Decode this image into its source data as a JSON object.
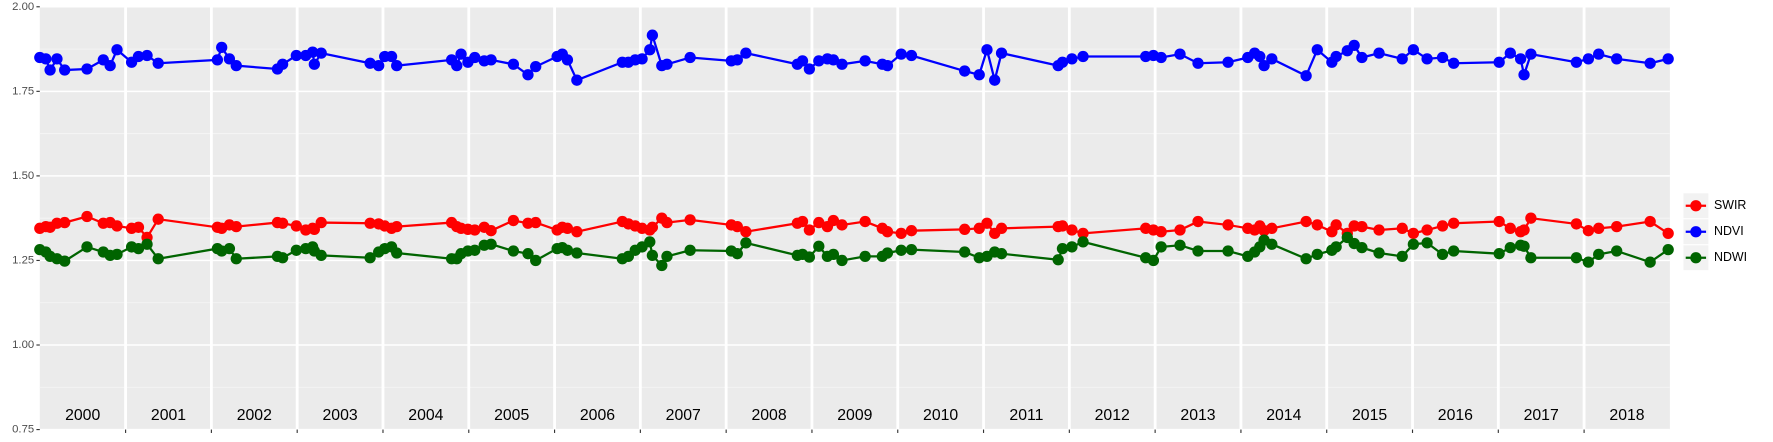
{
  "chart_data": {
    "type": "line",
    "x": [
      2000.0,
      2000.07,
      2000.12,
      2000.2,
      2000.29,
      2000.55,
      2000.74,
      2000.82,
      2000.9,
      2001.07,
      2001.15,
      2001.25,
      2001.38,
      2002.07,
      2002.12,
      2002.21,
      2002.29,
      2002.77,
      2002.83,
      2002.99,
      2003.1,
      2003.18,
      2003.2,
      2003.28,
      2003.85,
      2003.95,
      2004.02,
      2004.1,
      2004.16,
      2004.8,
      2004.86,
      2004.91,
      2004.99,
      2005.07,
      2005.18,
      2005.26,
      2005.52,
      2005.69,
      2005.78,
      2006.03,
      2006.09,
      2006.15,
      2006.26,
      2006.79,
      2006.86,
      2006.94,
      2007.02,
      2007.11,
      2007.14,
      2007.25,
      2007.31,
      2007.58,
      2008.06,
      2008.13,
      2008.23,
      2008.83,
      2008.89,
      2008.97,
      2009.08,
      2009.18,
      2009.25,
      2009.35,
      2009.62,
      2009.82,
      2009.88,
      2010.04,
      2010.16,
      2010.78,
      2010.95,
      2011.04,
      2011.13,
      2011.21,
      2011.87,
      2011.92,
      2012.03,
      2012.16,
      2012.89,
      2012.98,
      2013.07,
      2013.29,
      2013.5,
      2013.85,
      2014.08,
      2014.16,
      2014.22,
      2014.27,
      2014.36,
      2014.76,
      2014.89,
      2015.06,
      2015.11,
      2015.24,
      2015.32,
      2015.41,
      2015.61,
      2015.88,
      2016.01,
      2016.17,
      2016.35,
      2016.48,
      2017.01,
      2017.14,
      2017.26,
      2017.3,
      2017.38,
      2017.91,
      2018.05,
      2018.17,
      2018.38,
      2018.77,
      2018.98
    ],
    "series": [
      {
        "name": "SWIR",
        "color": "#ff0000",
        "values": [
          1.345,
          1.35,
          1.348,
          1.36,
          1.362,
          1.38,
          1.36,
          1.362,
          1.352,
          1.345,
          1.348,
          1.318,
          1.372,
          1.348,
          1.345,
          1.355,
          1.35,
          1.362,
          1.36,
          1.352,
          1.34,
          1.345,
          1.342,
          1.362,
          1.36,
          1.358,
          1.352,
          1.345,
          1.35,
          1.362,
          1.35,
          1.345,
          1.342,
          1.34,
          1.348,
          1.338,
          1.368,
          1.36,
          1.362,
          1.34,
          1.348,
          1.345,
          1.335,
          1.365,
          1.358,
          1.352,
          1.345,
          1.34,
          1.348,
          1.375,
          1.362,
          1.37,
          1.355,
          1.35,
          1.335,
          1.36,
          1.365,
          1.34,
          1.362,
          1.35,
          1.368,
          1.355,
          1.365,
          1.345,
          1.335,
          1.33,
          1.338,
          1.342,
          1.345,
          1.36,
          1.33,
          1.345,
          1.35,
          1.352,
          1.34,
          1.33,
          1.345,
          1.34,
          1.335,
          1.34,
          1.365,
          1.355,
          1.345,
          1.34,
          1.352,
          1.338,
          1.345,
          1.365,
          1.355,
          1.335,
          1.355,
          1.33,
          1.352,
          1.35,
          1.34,
          1.345,
          1.33,
          1.34,
          1.352,
          1.36,
          1.365,
          1.345,
          1.335,
          1.34,
          1.375,
          1.358,
          1.338,
          1.345,
          1.35,
          1.365,
          1.33
        ]
      },
      {
        "name": "NDVI",
        "color": "#0000ff",
        "values": [
          1.85,
          1.846,
          1.813,
          1.846,
          1.813,
          1.816,
          1.843,
          1.826,
          1.873,
          1.836,
          1.853,
          1.856,
          1.833,
          1.843,
          1.88,
          1.846,
          1.826,
          1.816,
          1.83,
          1.856,
          1.856,
          1.866,
          1.83,
          1.863,
          1.833,
          1.826,
          1.853,
          1.853,
          1.826,
          1.843,
          1.826,
          1.86,
          1.836,
          1.85,
          1.84,
          1.843,
          1.83,
          1.799,
          1.823,
          1.853,
          1.86,
          1.843,
          1.783,
          1.836,
          1.836,
          1.843,
          1.846,
          1.873,
          1.916,
          1.826,
          1.83,
          1.85,
          1.84,
          1.843,
          1.863,
          1.83,
          1.84,
          1.816,
          1.84,
          1.846,
          1.843,
          1.83,
          1.84,
          1.83,
          1.826,
          1.86,
          1.856,
          1.81,
          1.799,
          1.873,
          1.783,
          1.863,
          1.826,
          1.836,
          1.846,
          1.853,
          1.853,
          1.856,
          1.85,
          1.86,
          1.833,
          1.836,
          1.85,
          1.863,
          1.853,
          1.826,
          1.846,
          1.796,
          1.873,
          1.836,
          1.853,
          1.87,
          1.886,
          1.85,
          1.863,
          1.846,
          1.873,
          1.846,
          1.85,
          1.833,
          1.836,
          1.863,
          1.846,
          1.799,
          1.86,
          1.836,
          1.846,
          1.86,
          1.846,
          1.833,
          1.846
        ]
      },
      {
        "name": "NDWI",
        "color": "#006400",
        "values": [
          1.282,
          1.275,
          1.262,
          1.255,
          1.248,
          1.29,
          1.275,
          1.265,
          1.268,
          1.29,
          1.285,
          1.298,
          1.255,
          1.285,
          1.278,
          1.285,
          1.255,
          1.262,
          1.258,
          1.28,
          1.285,
          1.29,
          1.278,
          1.265,
          1.258,
          1.275,
          1.285,
          1.29,
          1.272,
          1.255,
          1.255,
          1.27,
          1.278,
          1.28,
          1.295,
          1.298,
          1.278,
          1.27,
          1.25,
          1.285,
          1.288,
          1.28,
          1.272,
          1.255,
          1.262,
          1.28,
          1.29,
          1.305,
          1.265,
          1.235,
          1.262,
          1.28,
          1.278,
          1.27,
          1.302,
          1.265,
          1.268,
          1.26,
          1.292,
          1.262,
          1.268,
          1.25,
          1.262,
          1.262,
          1.272,
          1.28,
          1.282,
          1.275,
          1.258,
          1.262,
          1.275,
          1.27,
          1.252,
          1.285,
          1.29,
          1.305,
          1.258,
          1.25,
          1.29,
          1.295,
          1.278,
          1.278,
          1.262,
          1.275,
          1.29,
          1.31,
          1.298,
          1.255,
          1.268,
          1.28,
          1.29,
          1.318,
          1.3,
          1.288,
          1.272,
          1.262,
          1.298,
          1.302,
          1.268,
          1.278,
          1.27,
          1.288,
          1.295,
          1.292,
          1.258,
          1.258,
          1.245,
          1.268,
          1.278,
          1.245,
          1.282
        ]
      }
    ],
    "xlim": [
      2000,
      2019
    ],
    "xticks": [
      2001,
      2002,
      2003,
      2004,
      2005,
      2006,
      2007,
      2008,
      2009,
      2010,
      2011,
      2012,
      2013,
      2014,
      2015,
      2016,
      2017,
      2018
    ],
    "ylim": [
      0.75,
      2.0
    ],
    "yticks": [
      {
        "value": 0.75,
        "label": "0.75"
      },
      {
        "value": 1,
        "label": "1.00"
      },
      {
        "value": 1.25,
        "label": "1.25"
      },
      {
        "value": 1.5,
        "label": "1.50"
      },
      {
        "value": 1.75,
        "label": "1.75"
      },
      {
        "value": 2,
        "label": "2.00"
      }
    ],
    "grid": true,
    "legend": "right",
    "annotations": [
      {
        "text": "2000",
        "x": 2000.5,
        "y": 0.79
      },
      {
        "text": "2001",
        "x": 2001.5,
        "y": 0.79
      },
      {
        "text": "2002",
        "x": 2002.5,
        "y": 0.79
      },
      {
        "text": "2003",
        "x": 2003.5,
        "y": 0.79
      },
      {
        "text": "2004",
        "x": 2004.5,
        "y": 0.79
      },
      {
        "text": "2005",
        "x": 2005.5,
        "y": 0.79
      },
      {
        "text": "2006",
        "x": 2006.5,
        "y": 0.79
      },
      {
        "text": "2007",
        "x": 2007.5,
        "y": 0.79
      },
      {
        "text": "2008",
        "x": 2008.5,
        "y": 0.79
      },
      {
        "text": "2009",
        "x": 2009.5,
        "y": 0.79
      },
      {
        "text": "2010",
        "x": 2010.5,
        "y": 0.79
      },
      {
        "text": "2011",
        "x": 2011.5,
        "y": 0.79
      },
      {
        "text": "2012",
        "x": 2012.5,
        "y": 0.79
      },
      {
        "text": "2013",
        "x": 2013.5,
        "y": 0.79
      },
      {
        "text": "2014",
        "x": 2014.5,
        "y": 0.79
      },
      {
        "text": "2015",
        "x": 2015.5,
        "y": 0.79
      },
      {
        "text": "2016",
        "x": 2016.5,
        "y": 0.79
      },
      {
        "text": "2017",
        "x": 2017.5,
        "y": 0.79
      },
      {
        "text": "2018",
        "x": 2018.5,
        "y": 0.79
      }
    ]
  }
}
